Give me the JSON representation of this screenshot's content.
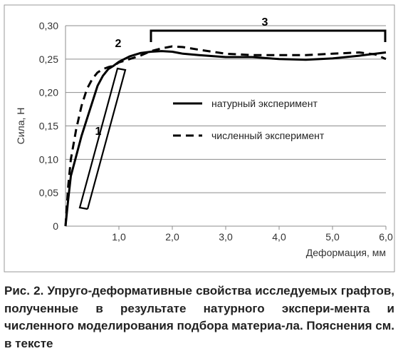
{
  "chart_data": {
    "type": "line",
    "xlabel": "Деформация, мм",
    "ylabel": "Сила, Н",
    "xlim": [
      0,
      6.0
    ],
    "ylim": [
      0,
      0.3
    ],
    "x_ticks": [
      "1,0",
      "2,0",
      "3,0",
      "4,0",
      "5,0",
      "6,0"
    ],
    "y_ticks": [
      "0",
      "0,05",
      "0,10",
      "0,15",
      "0,20",
      "0,25",
      "0,30"
    ],
    "grid": "horizontal",
    "legend_position": "center-right",
    "series": [
      {
        "name": "натурный эксперимент",
        "style": "solid",
        "color": "#000000",
        "x": [
          0,
          0.05,
          0.1,
          0.2,
          0.3,
          0.4,
          0.5,
          0.6,
          0.7,
          0.8,
          0.9,
          1.0,
          1.2,
          1.4,
          1.6,
          1.8,
          2.0,
          2.2,
          2.5,
          3.0,
          3.5,
          4.0,
          4.5,
          5.0,
          5.5,
          6.0
        ],
        "y": [
          0.0,
          0.04,
          0.075,
          0.105,
          0.135,
          0.16,
          0.185,
          0.21,
          0.225,
          0.235,
          0.24,
          0.246,
          0.254,
          0.259,
          0.261,
          0.262,
          0.261,
          0.258,
          0.256,
          0.253,
          0.253,
          0.25,
          0.249,
          0.251,
          0.255,
          0.26
        ]
      },
      {
        "name": "численный эксперимент",
        "style": "dashed",
        "color": "#000000",
        "x": [
          0,
          0.05,
          0.1,
          0.2,
          0.3,
          0.4,
          0.5,
          0.6,
          0.7,
          0.8,
          0.9,
          1.0,
          1.2,
          1.4,
          1.6,
          1.8,
          2.0,
          2.2,
          2.5,
          3.0,
          3.5,
          4.0,
          4.5,
          5.0,
          5.5,
          5.8,
          6.0
        ],
        "y": [
          0.0,
          0.06,
          0.1,
          0.145,
          0.18,
          0.205,
          0.22,
          0.23,
          0.235,
          0.238,
          0.24,
          0.245,
          0.25,
          0.255,
          0.262,
          0.266,
          0.269,
          0.268,
          0.264,
          0.258,
          0.256,
          0.256,
          0.256,
          0.258,
          0.26,
          0.257,
          0.25
        ]
      }
    ],
    "annotations": [
      {
        "label": "1",
        "region": "elastic"
      },
      {
        "label": "2",
        "region": "transition"
      },
      {
        "label": "3",
        "region": "plateau"
      }
    ]
  },
  "caption": "Рис. 2. Упруго-деформативные свойства исследуемых графтов, полученные в результате натурного экспери-мента и численного моделирования подбора материа-ла. Пояснения см. в тексте"
}
